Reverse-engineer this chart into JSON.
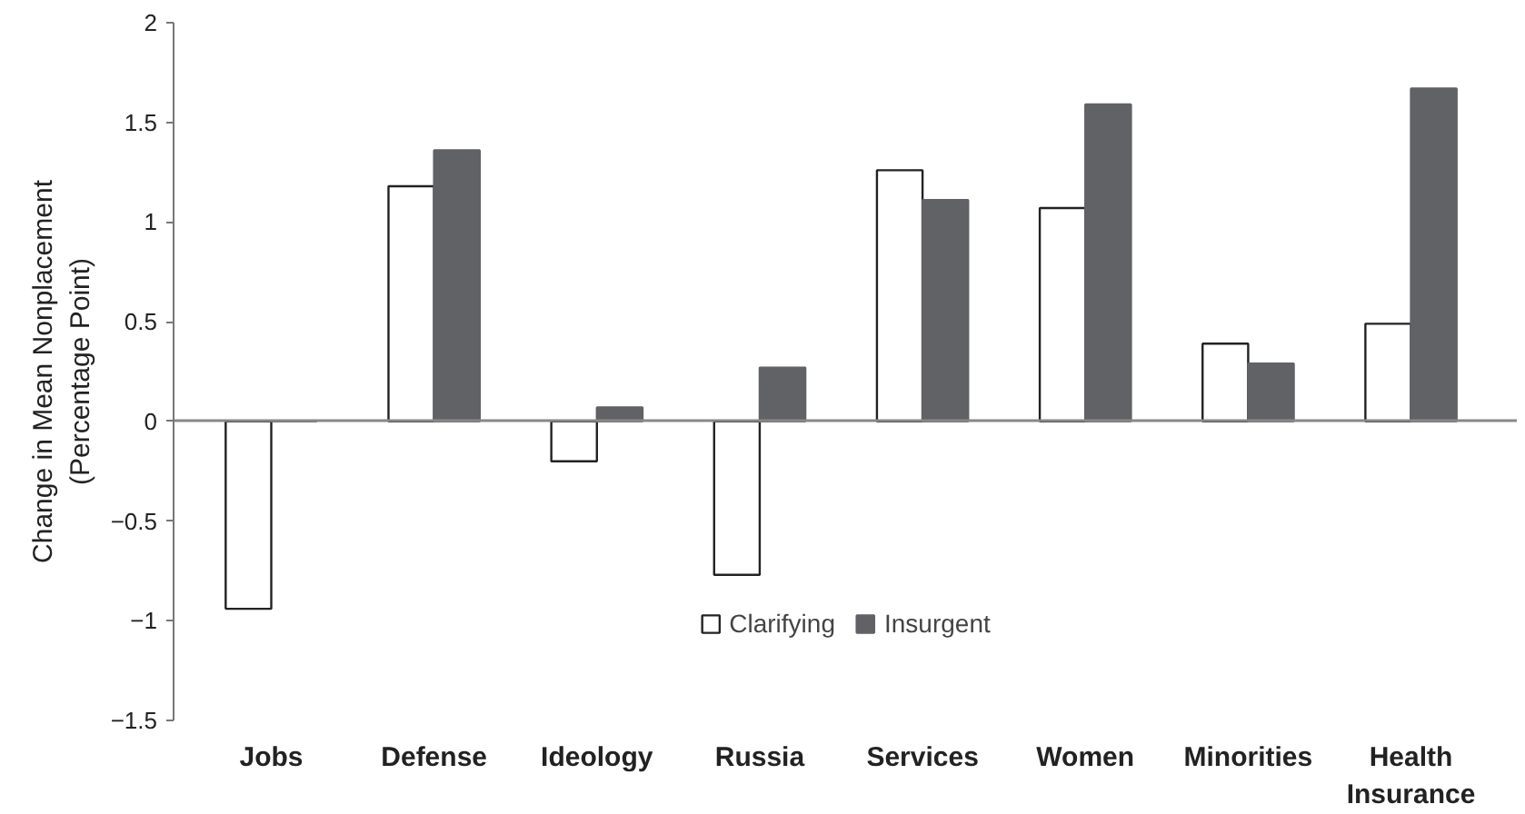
{
  "chart_data": {
    "type": "bar",
    "ylabel": "Change in Mean Nonplacement\n(Percentage Point)",
    "categories": [
      "Jobs",
      "Defense",
      "Ideology",
      "Russia",
      "Services",
      "Women",
      "Minorities",
      "Health Insurance"
    ],
    "series": [
      {
        "name": "Clarifying",
        "color": "#ffffff",
        "values": [
          -0.94,
          1.18,
          -0.2,
          -0.77,
          1.26,
          1.07,
          0.39,
          0.49
        ]
      },
      {
        "name": "Insurgent",
        "color": "#616265",
        "values": [
          0,
          1.36,
          0.07,
          0.27,
          1.11,
          1.59,
          0.29,
          1.67
        ]
      }
    ],
    "ylim": [
      -1.5,
      2
    ],
    "yticks": [
      {
        "value": -1.5,
        "label": "−1.5"
      },
      {
        "value": -1,
        "label": "−1"
      },
      {
        "value": -0.5,
        "label": "−0.5"
      },
      0,
      0.5,
      1,
      1.5,
      2
    ],
    "legend": "bottom"
  }
}
